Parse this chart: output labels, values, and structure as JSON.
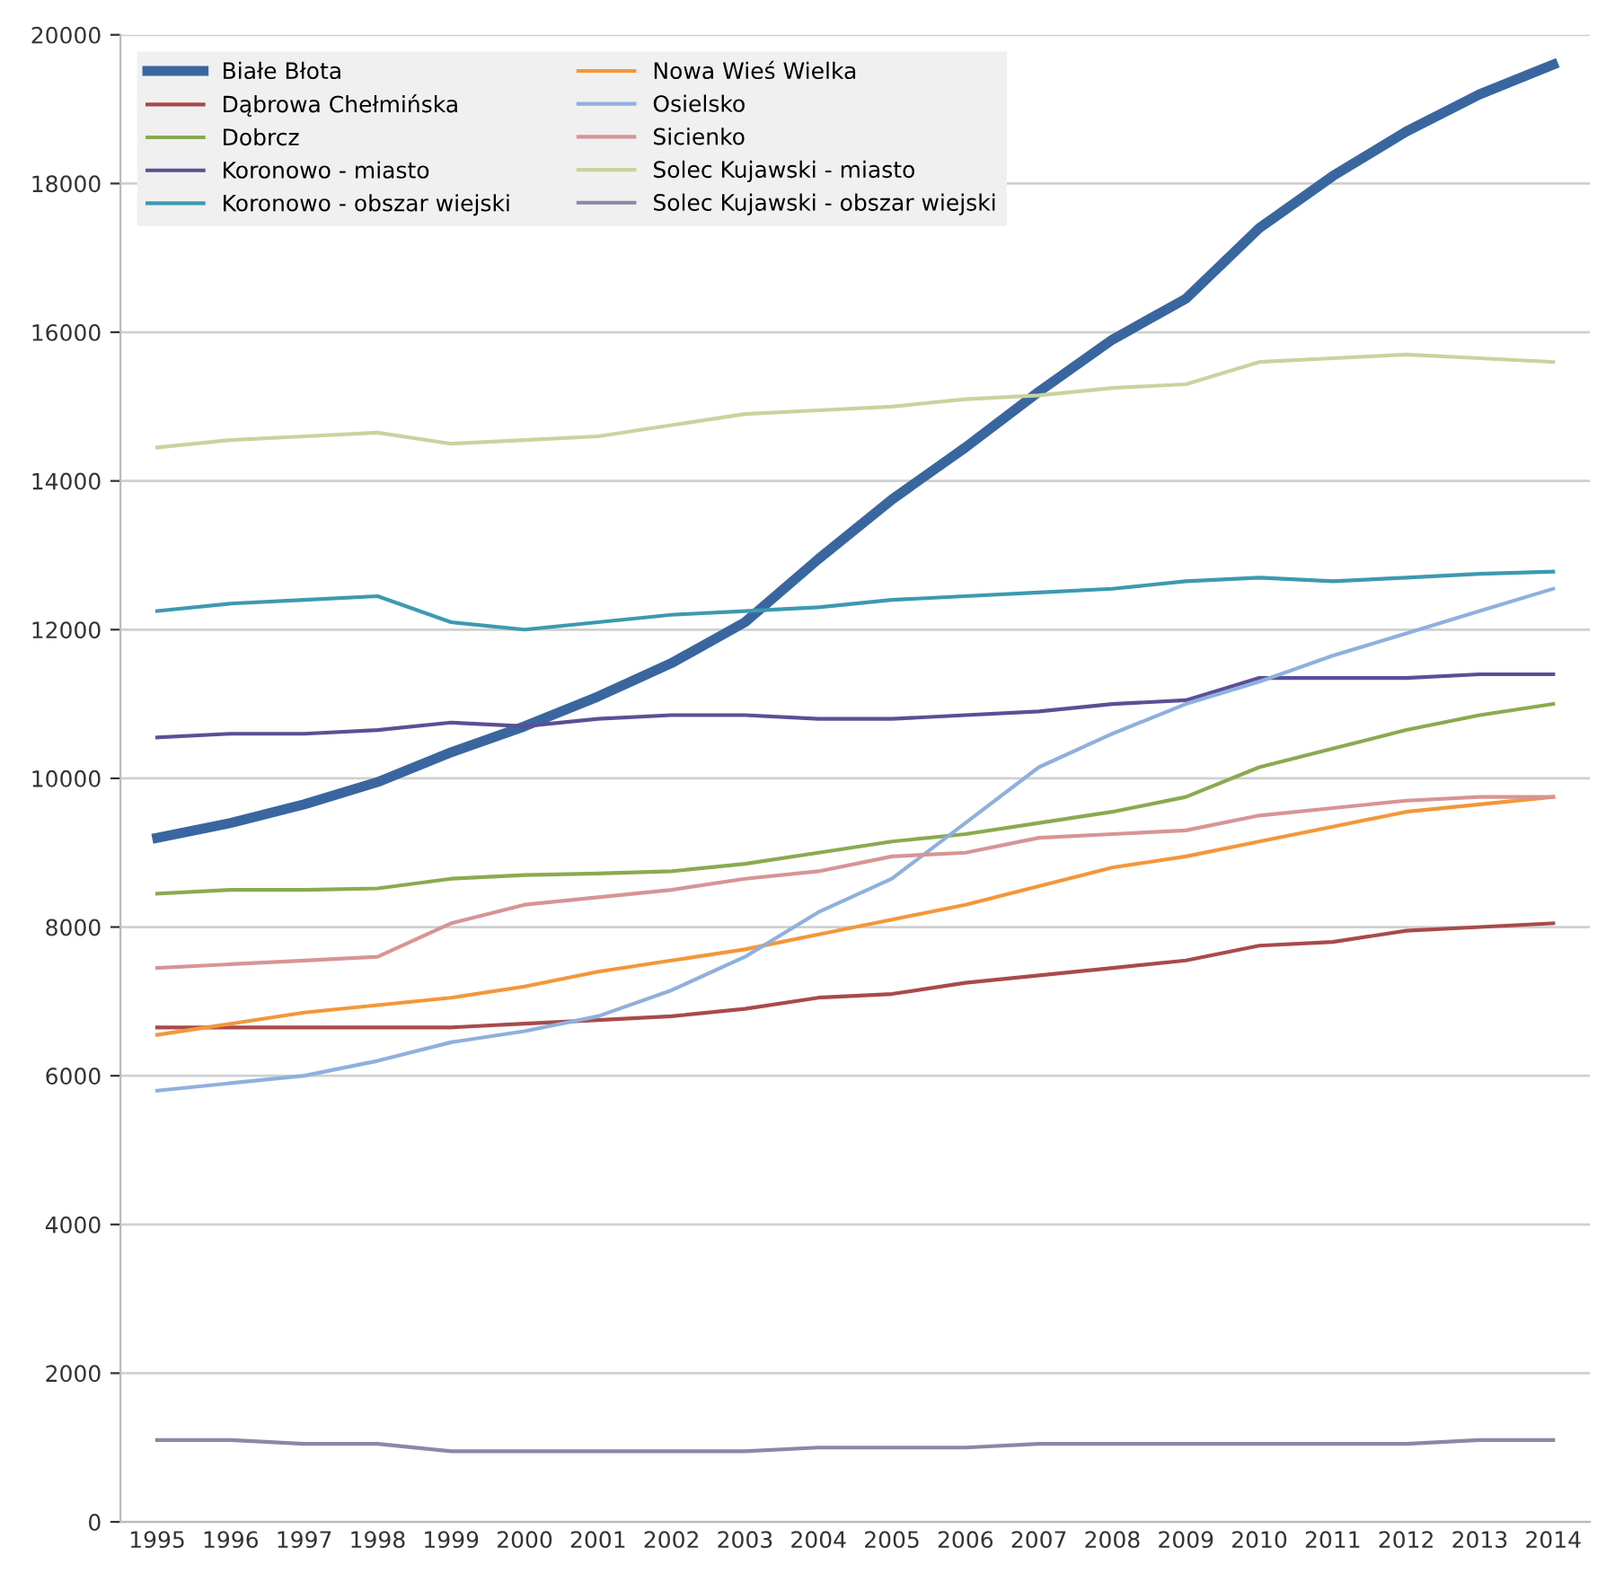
{
  "chart_data": {
    "type": "line",
    "categories": [
      "1995",
      "1996",
      "1997",
      "1998",
      "1999",
      "2000",
      "2001",
      "2002",
      "2003",
      "2004",
      "2005",
      "2006",
      "2007",
      "2008",
      "2009",
      "2010",
      "2011",
      "2012",
      "2013",
      "2014"
    ],
    "series": [
      {
        "name": "Białe Błota",
        "color": "#3a66a0",
        "values": [
          9200,
          9400,
          9650,
          9950,
          10350,
          10700,
          11100,
          11550,
          12100,
          12950,
          13750,
          14450,
          15200,
          15900,
          16450,
          17400,
          18100,
          18700,
          19200,
          19600
        ]
      },
      {
        "name": "Dąbrowa Chełmińska",
        "color": "#a94a4a",
        "values": [
          6650,
          6650,
          6650,
          6650,
          6650,
          6700,
          6750,
          6800,
          6900,
          7050,
          7100,
          7250,
          7350,
          7450,
          7550,
          7750,
          7800,
          7950,
          8000,
          8050
        ]
      },
      {
        "name": "Dobrcz",
        "color": "#8aaa50",
        "values": [
          8450,
          8500,
          8500,
          8520,
          8650,
          8700,
          8720,
          8750,
          8850,
          9000,
          9150,
          9250,
          9400,
          9550,
          9750,
          10150,
          10400,
          10650,
          10850,
          11000
        ]
      },
      {
        "name": "Koronowo - miasto",
        "color": "#5b4f96",
        "values": [
          10550,
          10600,
          10600,
          10650,
          10750,
          10700,
          10800,
          10850,
          10850,
          10800,
          10800,
          10850,
          10900,
          11000,
          11050,
          11350,
          11350,
          11350,
          11400,
          11400
        ]
      },
      {
        "name": "Koronowo - obszar wiejski",
        "color": "#3c9ab0",
        "values": [
          12250,
          12350,
          12400,
          12450,
          12100,
          12000,
          12100,
          12200,
          12250,
          12300,
          12400,
          12450,
          12500,
          12550,
          12650,
          12700,
          12650,
          12700,
          12750,
          12780
        ]
      },
      {
        "name": "Nowa Wieś Wielka",
        "color": "#f3973a",
        "values": [
          6550,
          6700,
          6850,
          6950,
          7050,
          7200,
          7400,
          7550,
          7700,
          7900,
          8100,
          8300,
          8550,
          8800,
          8950,
          9150,
          9350,
          9550,
          9650,
          9750
        ]
      },
      {
        "name": "Osielsko",
        "color": "#8fb0dc",
        "values": [
          5800,
          5900,
          6000,
          6200,
          6450,
          6600,
          6800,
          7150,
          7600,
          8200,
          8650,
          9400,
          10150,
          10600,
          11000,
          11300,
          11650,
          11950,
          12250,
          12550
        ]
      },
      {
        "name": "Sicienko",
        "color": "#d89494",
        "values": [
          7450,
          7500,
          7550,
          7600,
          8050,
          8300,
          8400,
          8500,
          8650,
          8750,
          8950,
          9000,
          9200,
          9250,
          9300,
          9500,
          9600,
          9700,
          9750,
          9750
        ]
      },
      {
        "name": "Solec Kujawski - miasto",
        "color": "#c9d39e",
        "values": [
          14450,
          14550,
          14600,
          14650,
          14500,
          14550,
          14600,
          14750,
          14900,
          14950,
          15000,
          15100,
          15150,
          15250,
          15300,
          15600,
          15650,
          15700,
          15650,
          15600
        ]
      },
      {
        "name": "Solec Kujawski - obszar wiejski",
        "color": "#8888a8",
        "values": [
          1100,
          1100,
          1050,
          1050,
          950,
          950,
          950,
          950,
          950,
          1000,
          1000,
          1000,
          1050,
          1050,
          1050,
          1050,
          1050,
          1050,
          1100,
          1100
        ]
      }
    ],
    "ylim": [
      0,
      20000
    ],
    "yticks": [
      0,
      2000,
      4000,
      6000,
      8000,
      10000,
      12000,
      14000,
      16000,
      18000,
      20000
    ],
    "grid": "y",
    "legend": "top left",
    "marker": "none",
    "line_style": "solid"
  }
}
